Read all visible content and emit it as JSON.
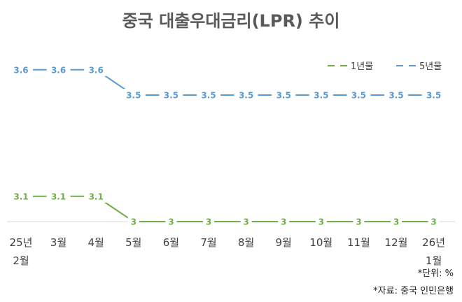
{
  "chart_data": {
    "type": "line",
    "title": "중국 대출우대금리(LPR) 추이",
    "categories": [
      [
        "25년",
        "2월"
      ],
      [
        "3월"
      ],
      [
        "4월"
      ],
      [
        "5월"
      ],
      [
        "6월"
      ],
      [
        "7월"
      ],
      [
        "8월"
      ],
      [
        "9월"
      ],
      [
        "10월"
      ],
      [
        "11월"
      ],
      [
        "12월"
      ],
      [
        "26년",
        "1월"
      ]
    ],
    "series": [
      {
        "name": "1년물",
        "color": "#70ad47",
        "values": [
          3.1,
          3.1,
          3.1,
          3,
          3,
          3,
          3,
          3,
          3,
          3,
          3,
          3
        ],
        "labels": [
          "3.1",
          "3.1",
          "3.1",
          "3",
          "3",
          "3",
          "3",
          "3",
          "3",
          "3",
          "3",
          "3"
        ]
      },
      {
        "name": "5년물",
        "color": "#5b9bd5",
        "values": [
          3.6,
          3.6,
          3.6,
          3.5,
          3.5,
          3.5,
          3.5,
          3.5,
          3.5,
          3.5,
          3.5,
          3.5
        ],
        "labels": [
          "3.6",
          "3.6",
          "3.6",
          "3.5",
          "3.5",
          "3.5",
          "3.5",
          "3.5",
          "3.5",
          "3.5",
          "3.5",
          "3.5"
        ]
      }
    ],
    "ylim": [
      3.0,
      3.65
    ],
    "grid": false,
    "legend": "top-right",
    "unit_note": "*단위: %",
    "source_note": "*자료: 중국 인민은행"
  }
}
